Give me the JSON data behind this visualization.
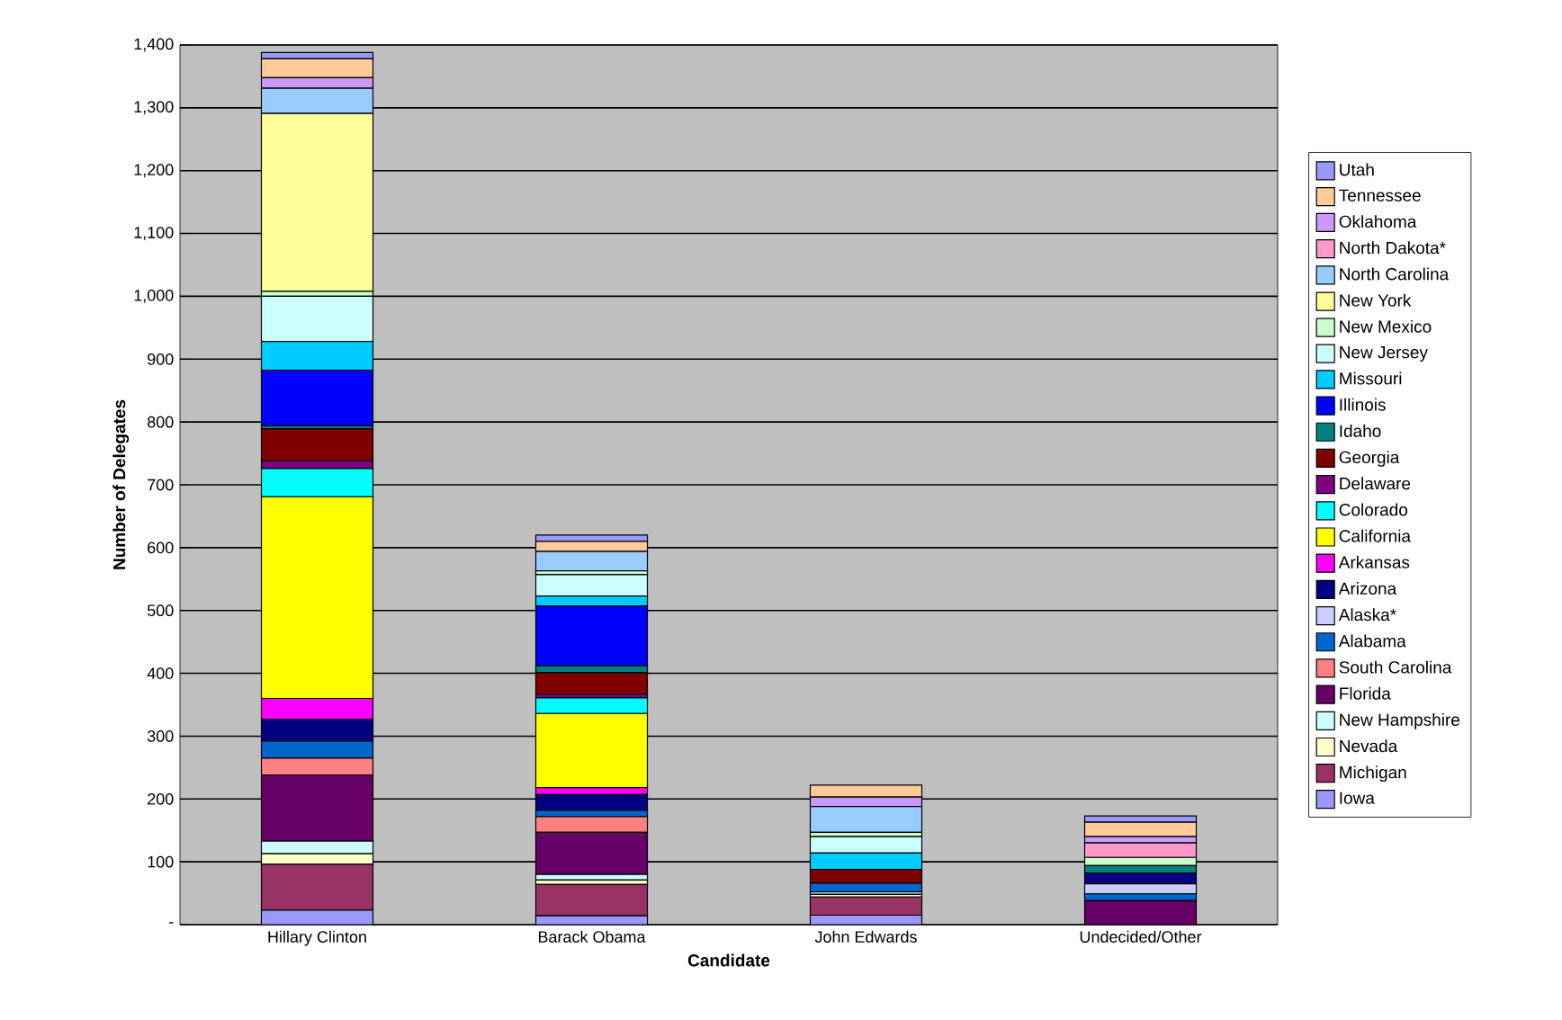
{
  "chart_data": {
    "type": "bar",
    "stacked": true,
    "xlabel": "Candidate",
    "ylabel": "Number of Delegates",
    "categories": [
      "Hillary Clinton",
      "Barack Obama",
      "John Edwards",
      "Undecided/Other"
    ],
    "ylim": [
      0,
      1400
    ],
    "yticks": [
      {
        "value": 0,
        "label": "-"
      },
      100,
      200,
      300,
      400,
      500,
      600,
      700,
      800,
      900,
      {
        "value": 1000,
        "label": "1,000"
      },
      {
        "value": 1100,
        "label": "1,100"
      },
      {
        "value": 1200,
        "label": "1,200"
      },
      {
        "value": 1300,
        "label": "1,300"
      },
      {
        "value": 1400,
        "label": "1,400"
      }
    ],
    "grid": "y",
    "legend": "right",
    "series": [
      {
        "name": "Iowa",
        "color": "#9999ff",
        "values": [
          23,
          14,
          15,
          0
        ]
      },
      {
        "name": "Michigan",
        "color": "#993366",
        "values": [
          73,
          50,
          29,
          0
        ]
      },
      {
        "name": "Nevada",
        "color": "#ffffcc",
        "values": [
          17,
          7,
          4,
          0
        ]
      },
      {
        "name": "New Hampshire",
        "color": "#ccffff",
        "values": [
          20,
          9,
          4,
          0
        ]
      },
      {
        "name": "Florida",
        "color": "#660066",
        "values": [
          105,
          67,
          0,
          38
        ]
      },
      {
        "name": "South Carolina",
        "color": "#ff8080",
        "values": [
          27,
          25,
          0,
          0
        ]
      },
      {
        "name": "Alabama",
        "color": "#0066cc",
        "values": [
          27,
          10,
          14,
          11
        ]
      },
      {
        "name": "Alaska*",
        "color": "#ccccff",
        "values": [
          0,
          0,
          0,
          16
        ]
      },
      {
        "name": "Arizona",
        "color": "#000080",
        "values": [
          35,
          25,
          0,
          17
        ]
      },
      {
        "name": "Arkansas",
        "color": "#ff00ff",
        "values": [
          33,
          11,
          0,
          0
        ]
      },
      {
        "name": "California",
        "color": "#ffff00",
        "values": [
          321,
          118,
          0,
          0
        ]
      },
      {
        "name": "Colorado",
        "color": "#00ffff",
        "values": [
          45,
          25,
          0,
          0
        ]
      },
      {
        "name": "Delaware",
        "color": "#800080",
        "values": [
          12,
          6,
          0,
          0
        ]
      },
      {
        "name": "Georgia",
        "color": "#800000",
        "values": [
          51,
          34,
          22,
          0
        ]
      },
      {
        "name": "Idaho",
        "color": "#008080",
        "values": [
          5,
          11,
          0,
          12
        ]
      },
      {
        "name": "Illinois",
        "color": "#0000ff",
        "values": [
          88,
          95,
          0,
          0
        ]
      },
      {
        "name": "Missouri",
        "color": "#00ccff",
        "values": [
          46,
          16,
          26,
          0
        ]
      },
      {
        "name": "New Jersey",
        "color": "#ccffff",
        "values": [
          72,
          34,
          26,
          0
        ]
      },
      {
        "name": "New Mexico",
        "color": "#ccffcc",
        "values": [
          8,
          6,
          7,
          13
        ]
      },
      {
        "name": "New York",
        "color": "#ffff99",
        "values": [
          283,
          0,
          0,
          0
        ]
      },
      {
        "name": "North Carolina",
        "color": "#99ccff",
        "values": [
          40,
          31,
          41,
          0
        ]
      },
      {
        "name": "North Dakota*",
        "color": "#ff99cc",
        "values": [
          0,
          0,
          0,
          23
        ]
      },
      {
        "name": "Oklahoma",
        "color": "#cc99ff",
        "values": [
          17,
          0,
          15,
          10
        ]
      },
      {
        "name": "Tennessee",
        "color": "#ffcc99",
        "values": [
          30,
          16,
          19,
          23
        ]
      },
      {
        "name": "Utah",
        "color": "#9999ff",
        "values": [
          10,
          10,
          0,
          10
        ]
      }
    ]
  }
}
